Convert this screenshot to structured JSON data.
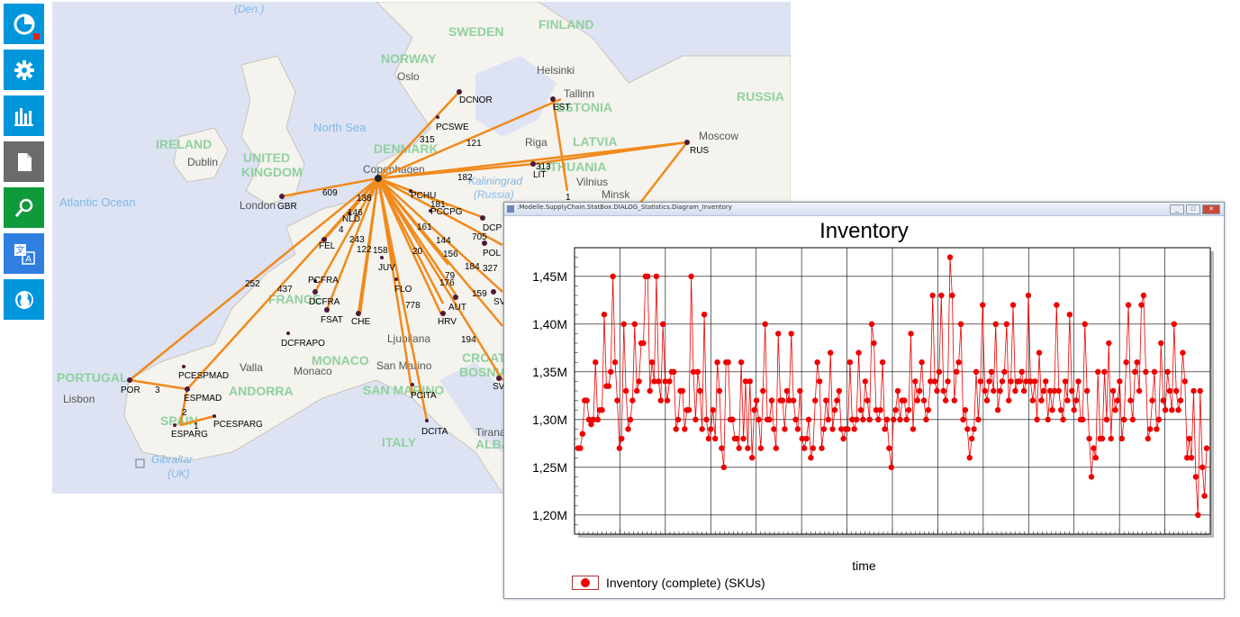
{
  "sidebar": {
    "items": [
      {
        "name": "pie-chart-icon",
        "color": "#0096db"
      },
      {
        "name": "gear-icon",
        "color": "#0096db"
      },
      {
        "name": "bar-chart-icon",
        "color": "#0096db"
      },
      {
        "name": "document-icon",
        "color": "#6b6b6b"
      },
      {
        "name": "search-icon",
        "color": "#119a3c"
      },
      {
        "name": "translate-icon",
        "color": "#2f7fe0"
      },
      {
        "name": "globe-icon",
        "color": "#0096db"
      }
    ]
  },
  "map": {
    "geo_labels": [
      "(Den.)",
      "SWEDEN",
      "FINLAND",
      "NORWAY",
      "Oslo",
      "Helsinki",
      "Tallinn",
      "ESTONIA",
      "RUSSIA",
      "Moscow",
      "North Sea",
      "DENMARK",
      "Riga",
      "LATVIA",
      "IRELAND",
      "Dublin",
      "UNITED",
      "KINGDOM",
      "Copenhagen",
      "LITHUANIA",
      "Vilnius",
      "Minsk",
      "Atlantic Ocean",
      "London",
      "Kaliningrad",
      "(Russia)",
      "FRANCE",
      "PORTUGAL",
      "Lisbon",
      "SPAIN",
      "ANDORRA",
      "Valla",
      "Monaco",
      "MONACO",
      "San Marino",
      "SAN MARINO",
      "Ljubljana",
      "CROATIA",
      "BOSNIA",
      "ITALY",
      "Tirana",
      "ALBANIA",
      "Gibraltar",
      "(UK)"
    ],
    "nodes": [
      "DCNOR",
      "EST",
      "PCSWE",
      "RUS",
      "LIT",
      "GBR",
      "PCHU",
      "PCCPG",
      "DCP",
      "NLD",
      "FEL",
      "PCFRA",
      "DCFRA",
      "JUV",
      "FLO",
      "FSAT",
      "CHE",
      "HRV",
      "AUT",
      "SVK",
      "DCFRAPO",
      "PCESPMAD",
      "ESPMAD",
      "POR",
      "ESPARG",
      "PCESPARG",
      "PCITA",
      "DCITA",
      "SVN",
      "POL"
    ],
    "edge_labels": [
      "315",
      "121",
      "182",
      "313",
      "1",
      "609",
      "138",
      "146",
      "4",
      "243",
      "122",
      "158",
      "161",
      "181",
      "705",
      "20",
      "144",
      "156",
      "184",
      "327",
      "79",
      "176",
      "159",
      "252",
      "437",
      "778",
      "194",
      "3",
      "2",
      "1"
    ]
  },
  "chart_window": {
    "title_bar": ":Modelle.SupplyChain.StatBox.DIALOG_Statistics.Diagram_Inventory",
    "buttons": [
      "_",
      "□",
      "✕"
    ]
  },
  "chart_data": {
    "type": "line",
    "title": "Inventory",
    "xlabel": "time",
    "ylabel": "",
    "ylim": [
      1.18,
      1.48
    ],
    "yticks": [
      "1,20M",
      "1,25M",
      "1,30M",
      "1,35M",
      "1,40M",
      "1,45M"
    ],
    "ytick_values": [
      1.2,
      1.25,
      1.3,
      1.35,
      1.4,
      1.45
    ],
    "grid": true,
    "legend_position": "bottom-left",
    "series": [
      {
        "name": "Inventory (complete) (SKUs)",
        "color": "#ee0000",
        "values": [
          1.27,
          1.27,
          1.285,
          1.32,
          1.32,
          1.3,
          1.295,
          1.3,
          1.36,
          1.3,
          1.31,
          1.31,
          1.41,
          1.335,
          1.335,
          1.35,
          1.45,
          1.36,
          1.32,
          1.27,
          1.28,
          1.4,
          1.33,
          1.29,
          1.3,
          1.32,
          1.4,
          1.33,
          1.34,
          1.38,
          1.38,
          1.45,
          1.45,
          1.33,
          1.36,
          1.34,
          1.45,
          1.34,
          1.32,
          1.4,
          1.34,
          1.32,
          1.34,
          1.35,
          1.35,
          1.29,
          1.3,
          1.33,
          1.33,
          1.29,
          1.31,
          1.31,
          1.45,
          1.35,
          1.3,
          1.35,
          1.33,
          1.29,
          1.41,
          1.3,
          1.28,
          1.29,
          1.31,
          1.28,
          1.36,
          1.33,
          1.27,
          1.25,
          1.36,
          1.36,
          1.3,
          1.3,
          1.28,
          1.28,
          1.27,
          1.36,
          1.28,
          1.34,
          1.27,
          1.34,
          1.26,
          1.31,
          1.32,
          1.3,
          1.27,
          1.33,
          1.4,
          1.3,
          1.3,
          1.32,
          1.29,
          1.27,
          1.39,
          1.32,
          1.32,
          1.29,
          1.33,
          1.32,
          1.39,
          1.32,
          1.3,
          1.29,
          1.33,
          1.28,
          1.27,
          1.28,
          1.3,
          1.26,
          1.27,
          1.32,
          1.36,
          1.34,
          1.27,
          1.29,
          1.32,
          1.3,
          1.37,
          1.29,
          1.31,
          1.32,
          1.33,
          1.29,
          1.28,
          1.29,
          1.29,
          1.36,
          1.3,
          1.29,
          1.3,
          1.37,
          1.31,
          1.3,
          1.34,
          1.32,
          1.3,
          1.4,
          1.38,
          1.31,
          1.3,
          1.31,
          1.36,
          1.29,
          1.3,
          1.27,
          1.25,
          1.3,
          1.31,
          1.33,
          1.3,
          1.32,
          1.32,
          1.3,
          1.31,
          1.39,
          1.29,
          1.34,
          1.32,
          1.33,
          1.36,
          1.32,
          1.3,
          1.31,
          1.34,
          1.43,
          1.34,
          1.33,
          1.35,
          1.43,
          1.33,
          1.32,
          1.34,
          1.47,
          1.43,
          1.32,
          1.35,
          1.36,
          1.4,
          1.3,
          1.31,
          1.29,
          1.26,
          1.28,
          1.29,
          1.35,
          1.3,
          1.34,
          1.42,
          1.33,
          1.32,
          1.34,
          1.35,
          1.33,
          1.4,
          1.31,
          1.33,
          1.34,
          1.35,
          1.4,
          1.32,
          1.34,
          1.42,
          1.33,
          1.34,
          1.34,
          1.35,
          1.33,
          1.34,
          1.43,
          1.34,
          1.32,
          1.34,
          1.3,
          1.37,
          1.32,
          1.33,
          1.34,
          1.3,
          1.33,
          1.31,
          1.33,
          1.42,
          1.33,
          1.31,
          1.3,
          1.34,
          1.32,
          1.41,
          1.33,
          1.31,
          1.32,
          1.34,
          1.3,
          1.3,
          1.4,
          1.33,
          1.28,
          1.24,
          1.27,
          1.26,
          1.35,
          1.28,
          1.28,
          1.35,
          1.3,
          1.38,
          1.28,
          1.33,
          1.31,
          1.32,
          1.34,
          1.28,
          1.3,
          1.36,
          1.42,
          1.32,
          1.3,
          1.35,
          1.36,
          1.33,
          1.42,
          1.43,
          1.35,
          1.28,
          1.29,
          1.32,
          1.35,
          1.29,
          1.3,
          1.38,
          1.32,
          1.31,
          1.35,
          1.33,
          1.31,
          1.4,
          1.33,
          1.31,
          1.32,
          1.37,
          1.34,
          1.26,
          1.28,
          1.26,
          1.33,
          1.24,
          1.2,
          1.33,
          1.25,
          1.22,
          1.27
        ]
      }
    ]
  }
}
